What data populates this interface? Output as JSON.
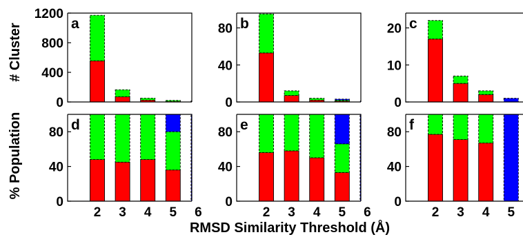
{
  "figure": {
    "ylabel_top": "# Cluster",
    "ylabel_bottom": "% Population",
    "xlabel": "RMSD Similarity Threshold (Å)"
  },
  "colors": {
    "red": "#ff0000",
    "green": "#00ff00",
    "blue": "#0000ff"
  },
  "chart_data": [
    {
      "type": "bar",
      "label": "a",
      "row": 0,
      "col": 0,
      "categories": [
        "2",
        "3",
        "4",
        "5",
        "6"
      ],
      "xticks_shown": false,
      "ylim": [
        0,
        1200
      ],
      "yticks": [
        0,
        400,
        800,
        1200
      ],
      "series": [
        {
          "color": "red",
          "values": [
            555,
            70,
            25,
            8,
            2
          ]
        },
        {
          "color": "green",
          "values": [
            615,
            95,
            27,
            12,
            0
          ]
        },
        {
          "color": "blue",
          "values": [
            0,
            0,
            0,
            0,
            0
          ]
        }
      ]
    },
    {
      "type": "bar",
      "label": "b",
      "row": 0,
      "col": 1,
      "categories": [
        "2",
        "3",
        "4",
        "5",
        "6"
      ],
      "xticks_shown": false,
      "ylim": [
        0,
        96
      ],
      "yticks": [
        0,
        40,
        80
      ],
      "series": [
        {
          "color": "red",
          "values": [
            53,
            7,
            2,
            1,
            0
          ]
        },
        {
          "color": "green",
          "values": [
            42,
            5,
            2,
            1,
            0
          ]
        },
        {
          "color": "blue",
          "values": [
            0,
            0,
            0,
            1,
            1
          ]
        }
      ]
    },
    {
      "type": "bar",
      "label": "c",
      "row": 0,
      "col": 2,
      "categories": [
        "2",
        "3",
        "4",
        "5",
        "6"
      ],
      "xticks_shown": false,
      "ylim": [
        0,
        24
      ],
      "yticks": [
        0,
        10,
        20
      ],
      "series": [
        {
          "color": "red",
          "values": [
            17,
            5,
            2,
            0,
            0
          ]
        },
        {
          "color": "green",
          "values": [
            5,
            2,
            1,
            0,
            0
          ]
        },
        {
          "color": "blue",
          "values": [
            0,
            0,
            0,
            1,
            1
          ]
        }
      ]
    },
    {
      "type": "bar",
      "label": "d",
      "row": 1,
      "col": 0,
      "categories": [
        "2",
        "3",
        "4",
        "5",
        "6"
      ],
      "xticks_shown": true,
      "ylim": [
        0,
        100
      ],
      "yticks": [
        0,
        40,
        80
      ],
      "series": [
        {
          "color": "red",
          "values": [
            48,
            45,
            48,
            36,
            0
          ]
        },
        {
          "color": "green",
          "values": [
            52,
            55,
            52,
            44,
            0
          ]
        },
        {
          "color": "blue",
          "values": [
            0,
            0,
            0,
            20,
            100
          ]
        }
      ]
    },
    {
      "type": "bar",
      "label": "e",
      "row": 1,
      "col": 1,
      "categories": [
        "2",
        "3",
        "4",
        "5",
        "6"
      ],
      "xticks_shown": true,
      "ylim": [
        0,
        100
      ],
      "yticks": [
        0,
        40,
        80
      ],
      "series": [
        {
          "color": "red",
          "values": [
            56,
            58,
            50,
            33,
            0
          ]
        },
        {
          "color": "green",
          "values": [
            44,
            42,
            50,
            33,
            0
          ]
        },
        {
          "color": "blue",
          "values": [
            0,
            0,
            0,
            34,
            100
          ]
        }
      ]
    },
    {
      "type": "bar",
      "label": "f",
      "row": 1,
      "col": 2,
      "categories": [
        "2",
        "3",
        "4",
        "5",
        "6"
      ],
      "xticks_shown": true,
      "ylim": [
        0,
        100
      ],
      "yticks": [
        0,
        40,
        80
      ],
      "series": [
        {
          "color": "red",
          "values": [
            77,
            71,
            67,
            0,
            0
          ]
        },
        {
          "color": "green",
          "values": [
            23,
            29,
            33,
            0,
            0
          ]
        },
        {
          "color": "blue",
          "values": [
            0,
            0,
            0,
            100,
            100
          ]
        }
      ]
    }
  ]
}
